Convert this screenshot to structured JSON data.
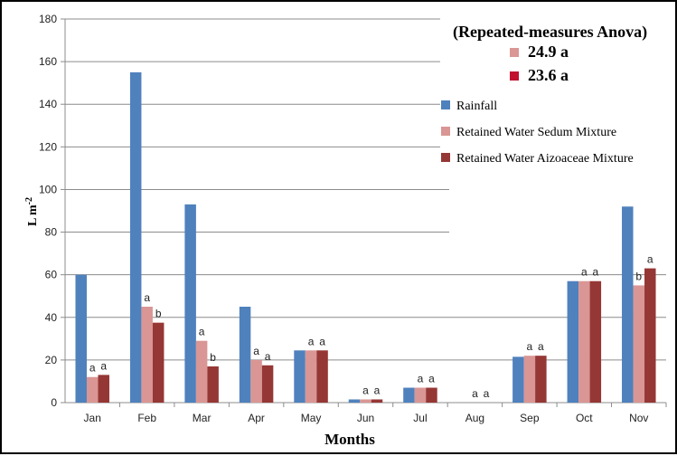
{
  "chart_data": {
    "type": "bar",
    "title": "",
    "xlabel": "Months",
    "ylabel": "L m",
    "ylabel_superscript": "-2",
    "ylim": [
      0,
      180
    ],
    "yticks": [
      0,
      20,
      40,
      60,
      80,
      100,
      120,
      140,
      160,
      180
    ],
    "grid": true,
    "categories": [
      "Jan",
      "Feb",
      "Mar",
      "Apr",
      "May",
      "Jun",
      "Jul",
      "Aug",
      "Sep",
      "Oct",
      "Nov"
    ],
    "series": [
      {
        "name": "Rainfall",
        "color": "#4f81bd",
        "values": [
          60,
          155,
          93,
          45,
          24.5,
          1.5,
          7,
          0,
          21.5,
          57,
          92
        ],
        "labels": [
          "",
          "",
          "",
          "",
          "",
          "",
          "",
          "",
          "",
          "",
          ""
        ]
      },
      {
        "name": "Retained Water Sedum Mixture",
        "color": "#d99694",
        "values": [
          12,
          45,
          29,
          20,
          24.5,
          1.5,
          7,
          0,
          22,
          57,
          55
        ],
        "labels": [
          "a",
          "a",
          "a",
          "a",
          "a",
          "a",
          "a",
          "a",
          "a",
          "a",
          "b"
        ]
      },
      {
        "name": "Retained Water Aizoaceae Mixture",
        "color": "#953735",
        "values": [
          13,
          37.5,
          17,
          17.5,
          24.5,
          1.5,
          7,
          0,
          22,
          57,
          63
        ],
        "labels": [
          "a",
          "b",
          "b",
          "a",
          "a",
          "a",
          "a",
          "a",
          "a",
          "a",
          "a"
        ]
      }
    ],
    "anova_box": {
      "title": "(Repeated-measures Anova)",
      "entries": [
        {
          "value": "24.9 a",
          "color": "#d99694"
        },
        {
          "value": "23.6 a",
          "color": "#c0112e"
        }
      ]
    },
    "legend_position": "right"
  }
}
